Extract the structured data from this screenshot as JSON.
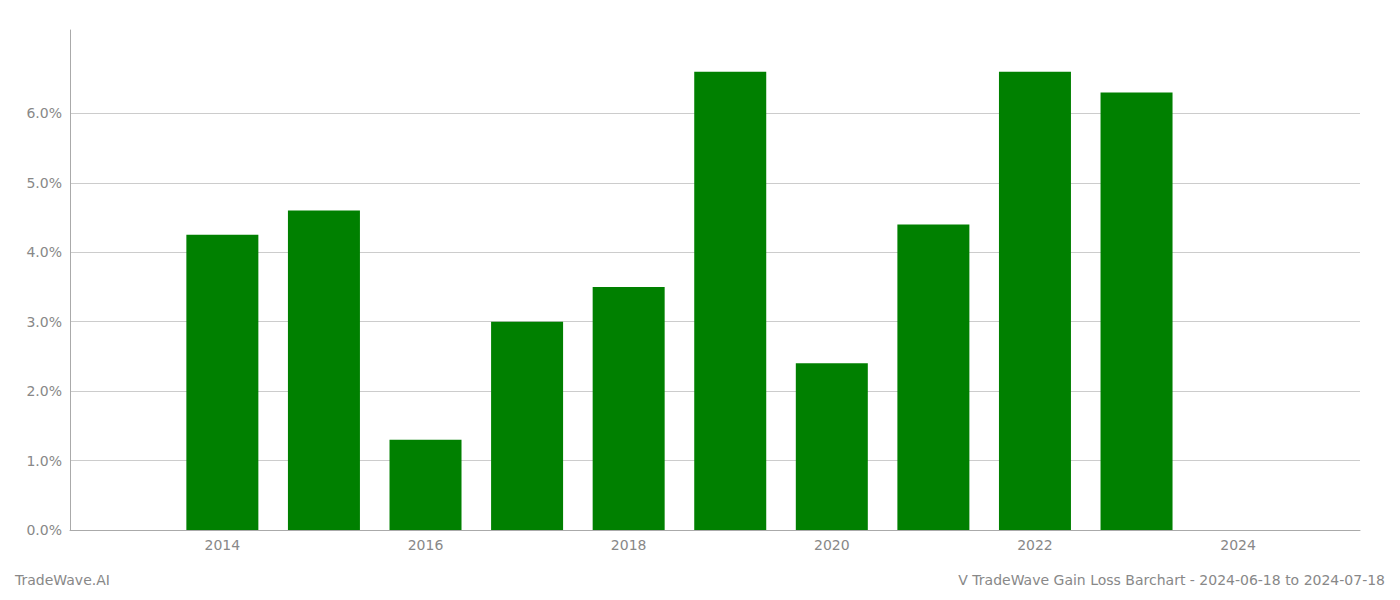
{
  "chart_data": {
    "type": "bar",
    "title": "V TradeWave Gain Loss Barchart - 2024-06-18 to 2024-07-18",
    "annotations": [
      "TradeWave.AI"
    ],
    "x": [
      2014,
      2015,
      2016,
      2017,
      2018,
      2019,
      2020,
      2021,
      2022,
      2023
    ],
    "values": [
      0.0425,
      0.046,
      0.013,
      0.03,
      0.035,
      0.066,
      0.024,
      0.044,
      0.066,
      0.063
    ],
    "color": "#008000",
    "xlim": [
      2012.5,
      2025.2
    ],
    "xticks": [
      2014,
      2016,
      2018,
      2020,
      2022,
      2024
    ],
    "ylim": [
      0.0,
      0.072
    ],
    "yticks": [
      {
        "value": 0.0,
        "label": "0.0%"
      },
      {
        "value": 0.01,
        "label": "1.0%"
      },
      {
        "value": 0.02,
        "label": "2.0%"
      },
      {
        "value": 0.03,
        "label": "3.0%"
      },
      {
        "value": 0.04,
        "label": "4.0%"
      },
      {
        "value": 0.05,
        "label": "5.0%"
      },
      {
        "value": 0.06,
        "label": "6.0%"
      }
    ],
    "grid": true
  }
}
